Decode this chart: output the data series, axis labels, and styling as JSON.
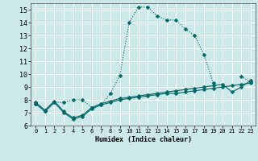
{
  "xlabel": "Humidex (Indice chaleur)",
  "xlim": [
    -0.5,
    23.5
  ],
  "ylim": [
    6,
    15.5
  ],
  "background_color": "#cce8e8",
  "grid_color": "#ffffff",
  "line_color": "#006666",
  "series": [
    {
      "x": [
        0,
        1,
        2,
        3,
        4,
        5,
        6,
        7,
        8,
        9,
        10,
        11,
        12,
        13,
        14,
        15,
        16,
        17,
        18,
        19,
        20,
        21,
        22,
        23
      ],
      "y": [
        7.7,
        7.1,
        7.8,
        7.0,
        6.5,
        6.7,
        7.3,
        7.6,
        7.8,
        8.0,
        8.1,
        8.2,
        8.3,
        8.4,
        8.5,
        8.5,
        8.6,
        8.7,
        8.8,
        8.9,
        9.0,
        9.1,
        9.2,
        9.3
      ],
      "style": "-",
      "marker": "D",
      "markersize": 2.5,
      "linewidth": 0.8
    },
    {
      "x": [
        0,
        1,
        2,
        3,
        4,
        5,
        6,
        7,
        8,
        9,
        10,
        11,
        12,
        13,
        14,
        15,
        16,
        17,
        18,
        19,
        20,
        21,
        22,
        23
      ],
      "y": [
        7.8,
        7.2,
        7.9,
        7.1,
        6.6,
        6.8,
        7.4,
        7.7,
        7.9,
        8.1,
        8.2,
        8.3,
        8.4,
        8.5,
        8.6,
        8.7,
        8.8,
        8.9,
        9.0,
        9.1,
        9.2,
        8.6,
        9.0,
        9.5
      ],
      "style": "-",
      "marker": "D",
      "markersize": 2.5,
      "linewidth": 0.8
    },
    {
      "x": [
        0,
        1,
        2,
        3,
        4,
        5,
        6,
        7,
        8,
        9,
        10,
        11,
        12,
        13,
        14,
        15,
        16,
        17,
        18,
        19,
        20,
        21,
        22,
        23
      ],
      "y": [
        7.7,
        7.1,
        7.8,
        7.8,
        8.0,
        8.0,
        7.4,
        7.6,
        8.5,
        9.9,
        14.0,
        15.2,
        15.2,
        14.5,
        14.2,
        14.2,
        13.5,
        13.0,
        11.5,
        9.3,
        null,
        null,
        9.8,
        9.4
      ],
      "style": ":",
      "marker": "D",
      "markersize": 2.5,
      "linewidth": 0.8
    }
  ],
  "yticks": [
    6,
    7,
    8,
    9,
    10,
    11,
    12,
    13,
    14,
    15
  ],
  "xticks": [
    0,
    1,
    2,
    3,
    4,
    5,
    6,
    7,
    8,
    9,
    10,
    11,
    12,
    13,
    14,
    15,
    16,
    17,
    18,
    19,
    20,
    21,
    22,
    23
  ]
}
